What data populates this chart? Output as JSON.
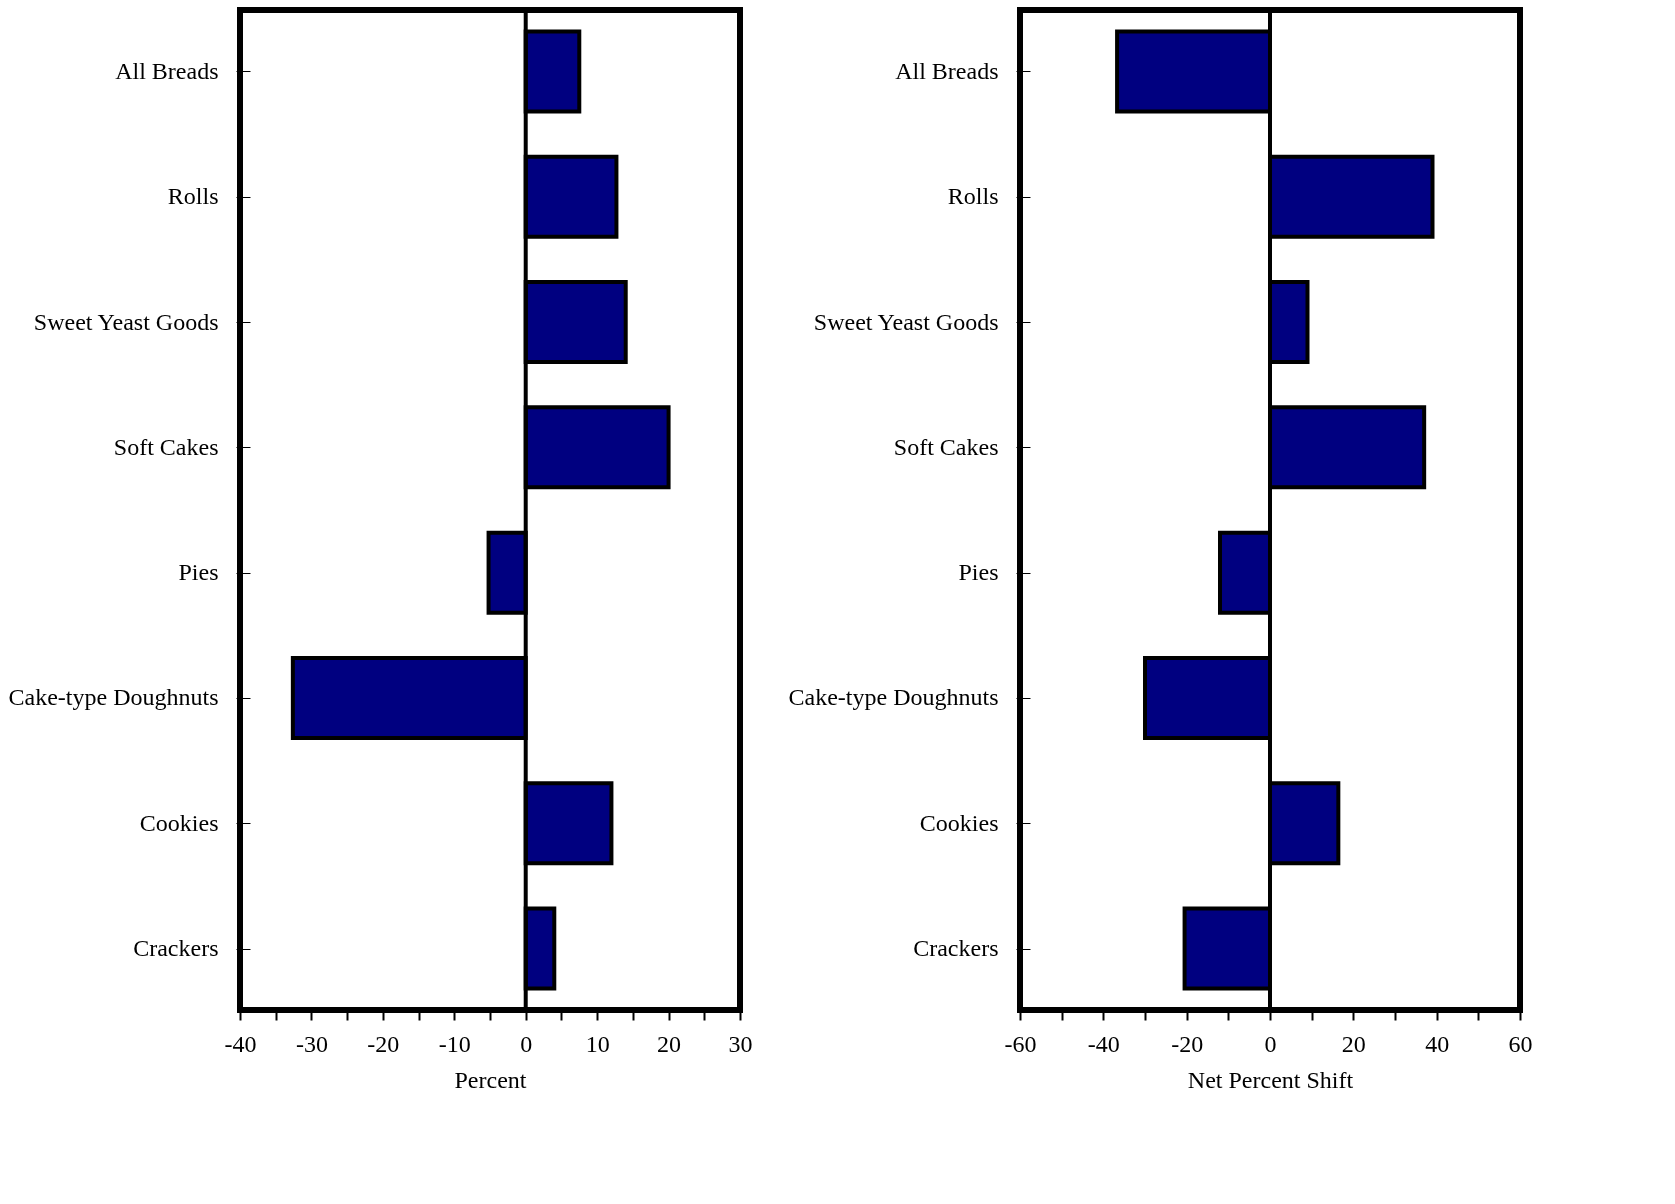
{
  "chart_data": [
    {
      "type": "bar",
      "orientation": "horizontal",
      "xlabel": "Percent",
      "categories": [
        "All Breads",
        "Rolls",
        "Sweet Yeast Goods",
        "Soft Cakes",
        "Pies",
        "Cake-type Doughnuts",
        "Cookies",
        "Crackers"
      ],
      "series": [
        {
          "color": "#000080",
          "values": [
            7.5,
            12.7,
            14,
            20,
            -5.2,
            -32.6,
            12,
            4
          ]
        }
      ],
      "xlim": [
        -40,
        30
      ],
      "xticks": [
        -40,
        {
          "value": -35,
          "label": null
        },
        -30,
        {
          "value": -25,
          "label": null
        },
        -20,
        {
          "value": -15,
          "label": null
        },
        -10,
        {
          "value": -5,
          "label": null
        },
        0,
        {
          "value": 5,
          "label": null
        },
        10,
        {
          "value": 15,
          "label": null
        },
        20,
        {
          "value": 25,
          "label": null
        },
        30
      ],
      "ref_lines": [
        {
          "axis": "x",
          "value": 0
        }
      ],
      "grid": false,
      "legend": false
    },
    {
      "type": "bar",
      "orientation": "horizontal",
      "xlabel": "Net Percent Shift",
      "categories": [
        "All Breads",
        "Rolls",
        "Sweet Yeast Goods",
        "Soft Cakes",
        "Pies",
        "Cake-type Doughnuts",
        "Cookies",
        "Crackers"
      ],
      "series": [
        {
          "color": "#000080",
          "values": [
            -36.7,
            39,
            9,
            37,
            -12,
            -30,
            16.4,
            -20.5
          ]
        }
      ],
      "xlim": [
        -60,
        60
      ],
      "xticks": [
        -60,
        {
          "value": -50,
          "label": null
        },
        -40,
        {
          "value": -30,
          "label": null
        },
        -20,
        {
          "value": -10,
          "label": null
        },
        0,
        {
          "value": 10,
          "label": null
        },
        20,
        {
          "value": 30,
          "label": null
        },
        40,
        {
          "value": 50,
          "label": null
        },
        60
      ],
      "ref_lines": [
        {
          "axis": "x",
          "value": 0
        }
      ],
      "grid": false,
      "legend": false
    }
  ]
}
